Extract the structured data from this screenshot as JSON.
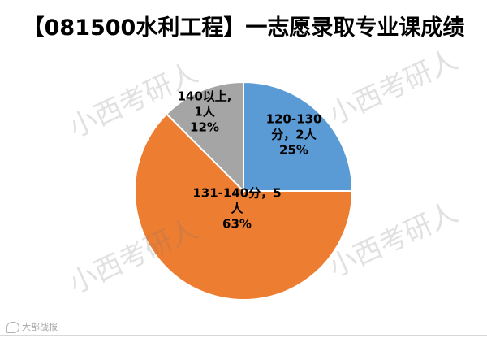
{
  "chart_data": {
    "type": "pie",
    "title": "【081500水利工程】一志愿录取专业课成绩",
    "slices": [
      {
        "label_lines": [
          "120-130",
          "分，2人",
          "25%"
        ],
        "value": 2,
        "percent": 25,
        "color": "#5b9bd5"
      },
      {
        "label_lines": [
          "131-140分，5",
          "人",
          "63%"
        ],
        "value": 5,
        "percent": 63,
        "color": "#ed7d31"
      },
      {
        "label_lines": [
          "140以上,",
          "1人",
          "12%"
        ],
        "value": 1,
        "percent": 12,
        "color": "#a5a5a5"
      }
    ],
    "legend": "none"
  },
  "watermark": {
    "text": "小西考研人"
  },
  "footer": {
    "brand": "大部战报"
  }
}
